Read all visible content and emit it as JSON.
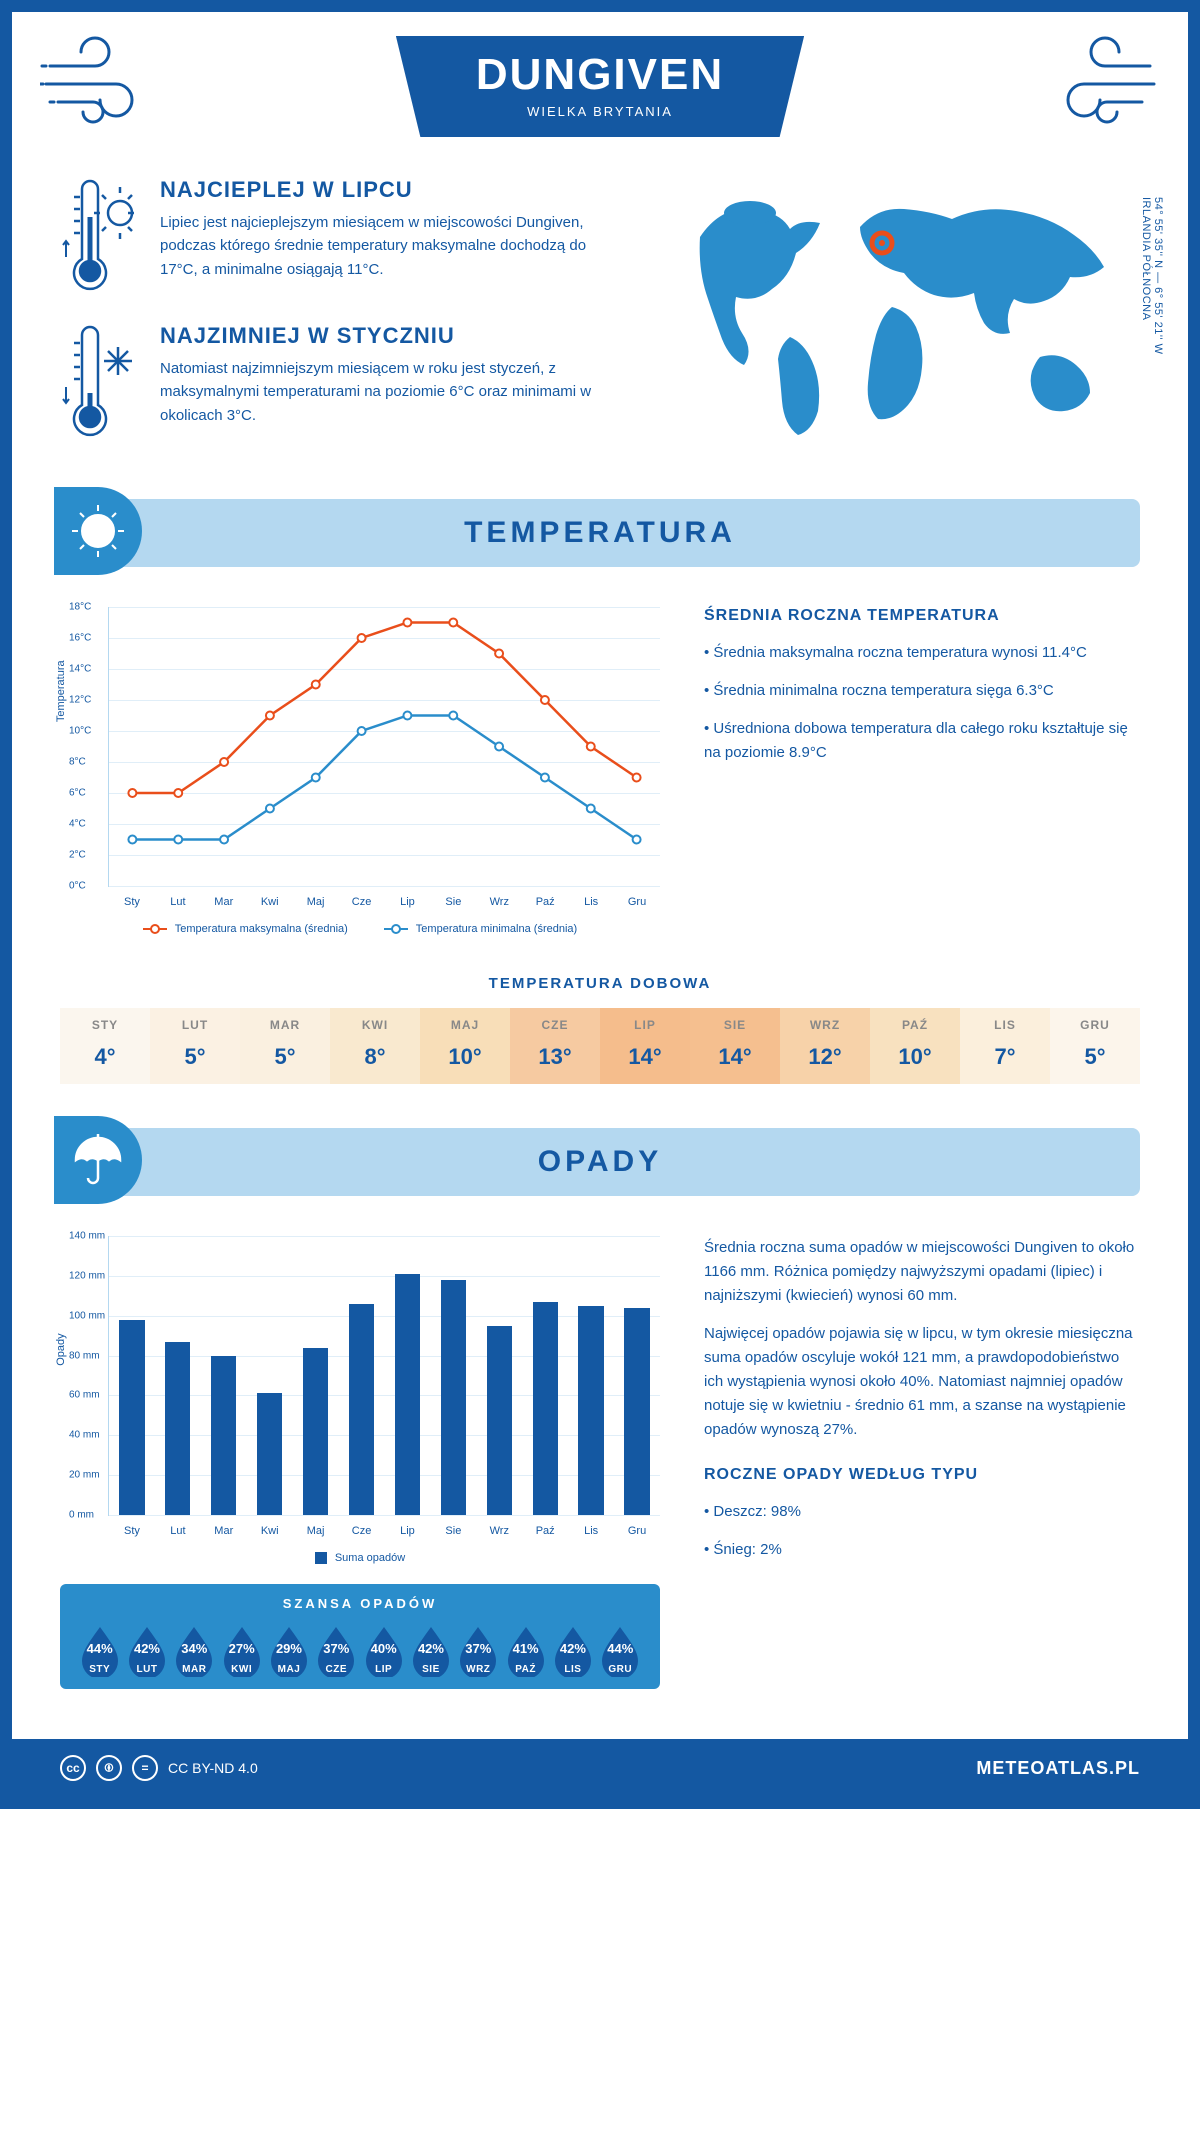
{
  "colors": {
    "primary": "#1458a2",
    "light_blue": "#b4d8f0",
    "mid_blue": "#2a8dcb",
    "line_max": "#e94e1b",
    "line_min": "#2a8dcb",
    "grid": "#e0eef8"
  },
  "header": {
    "city": "DUNGIVEN",
    "country": "WIELKA BRYTANIA"
  },
  "coords": {
    "text": "54° 55' 35'' N — 6° 55' 21'' W",
    "region": "IRLANDIA PÓŁNOCNA"
  },
  "facts": {
    "hot": {
      "title": "NAJCIEPLEJ W LIPCU",
      "body": "Lipiec jest najcieplejszym miesiącem w miejscowości Dungiven, podczas którego średnie temperatury maksymalne dochodzą do 17°C, a minimalne osiągają 11°C."
    },
    "cold": {
      "title": "NAJZIMNIEJ W STYCZNIU",
      "body": "Natomiast najzimniejszym miesiącem w roku jest styczeń, z maksymalnymi temperaturami na poziomie 6°C oraz minimami w okolicach 3°C."
    }
  },
  "sections": {
    "temp": "TEMPERATURA",
    "precip": "OPADY"
  },
  "temp_chart": {
    "type": "line",
    "months": [
      "Sty",
      "Lut",
      "Mar",
      "Kwi",
      "Maj",
      "Cze",
      "Lip",
      "Sie",
      "Wrz",
      "Paź",
      "Lis",
      "Gru"
    ],
    "max_series": [
      6,
      6,
      8,
      11,
      13,
      16,
      17,
      17,
      15,
      12,
      9,
      7
    ],
    "min_series": [
      3,
      3,
      3,
      5,
      7,
      10,
      11,
      11,
      9,
      7,
      5,
      3
    ],
    "ylim": [
      0,
      18
    ],
    "ytick_step": 2,
    "y_axis_label": "Temperatura",
    "y_unit": "°C",
    "legend_max": "Temperatura maksymalna (średnia)",
    "legend_min": "Temperatura minimalna (średnia)",
    "max_color": "#e94e1b",
    "min_color": "#2a8dcb"
  },
  "temp_text": {
    "heading": "ŚREDNIA ROCZNA TEMPERATURA",
    "b1": "• Średnia maksymalna roczna temperatura wynosi 11.4°C",
    "b2": "• Średnia minimalna roczna temperatura sięga 6.3°C",
    "b3": "• Uśredniona dobowa temperatura dla całego roku kształtuje się na poziomie 8.9°C"
  },
  "dobowa": {
    "title": "TEMPERATURA DOBOWA",
    "months": [
      "STY",
      "LUT",
      "MAR",
      "KWI",
      "MAJ",
      "CZE",
      "LIP",
      "SIE",
      "WRZ",
      "PAŹ",
      "LIS",
      "GRU"
    ],
    "values": [
      "4°",
      "5°",
      "5°",
      "8°",
      "10°",
      "13°",
      "14°",
      "14°",
      "12°",
      "10°",
      "7°",
      "5°"
    ],
    "bg_colors": [
      "#fbf6ee",
      "#fbf1e3",
      "#faf0e0",
      "#f9e9cf",
      "#f8deb8",
      "#f6caa1",
      "#f5bd8c",
      "#f5bf8f",
      "#f7d2a9",
      "#f8e1bf",
      "#fbefdc",
      "#fcf5eb"
    ]
  },
  "precip_chart": {
    "type": "bar",
    "months": [
      "Sty",
      "Lut",
      "Mar",
      "Kwi",
      "Maj",
      "Cze",
      "Lip",
      "Sie",
      "Wrz",
      "Paź",
      "Lis",
      "Gru"
    ],
    "values": [
      98,
      87,
      80,
      61,
      84,
      106,
      121,
      118,
      95,
      107,
      105,
      104
    ],
    "ylim": [
      0,
      140
    ],
    "ytick_step": 20,
    "y_axis_label": "Opady",
    "y_unit": " mm",
    "bar_color": "#1458a2",
    "legend": "Suma opadów"
  },
  "precip_text": {
    "p1": "Średnia roczna suma opadów w miejscowości Dungiven to około 1166 mm. Różnica pomiędzy najwyższymi opadami (lipiec) i najniższymi (kwiecień) wynosi 60 mm.",
    "p2": "Najwięcej opadów pojawia się w lipcu, w tym okresie miesięczna suma opadów oscyluje wokół 121 mm, a prawdopodobieństwo ich wystąpienia wynosi około 40%. Natomiast najmniej opadów notuje się w kwietniu - średnio 61 mm, a szanse na wystąpienie opadów wynoszą 27%.",
    "type_heading": "ROCZNE OPADY WEDŁUG TYPU",
    "rain": "• Deszcz: 98%",
    "snow": "• Śnieg: 2%"
  },
  "szansa": {
    "title": "SZANSA OPADÓW",
    "months": [
      "STY",
      "LUT",
      "MAR",
      "KWI",
      "MAJ",
      "CZE",
      "LIP",
      "SIE",
      "WRZ",
      "PAŹ",
      "LIS",
      "GRU"
    ],
    "values": [
      "44%",
      "42%",
      "34%",
      "27%",
      "29%",
      "37%",
      "40%",
      "42%",
      "37%",
      "41%",
      "42%",
      "44%"
    ],
    "drop_color": "#1458a2"
  },
  "footer": {
    "license": "CC BY-ND 4.0",
    "site": "METEOATLAS.PL"
  }
}
